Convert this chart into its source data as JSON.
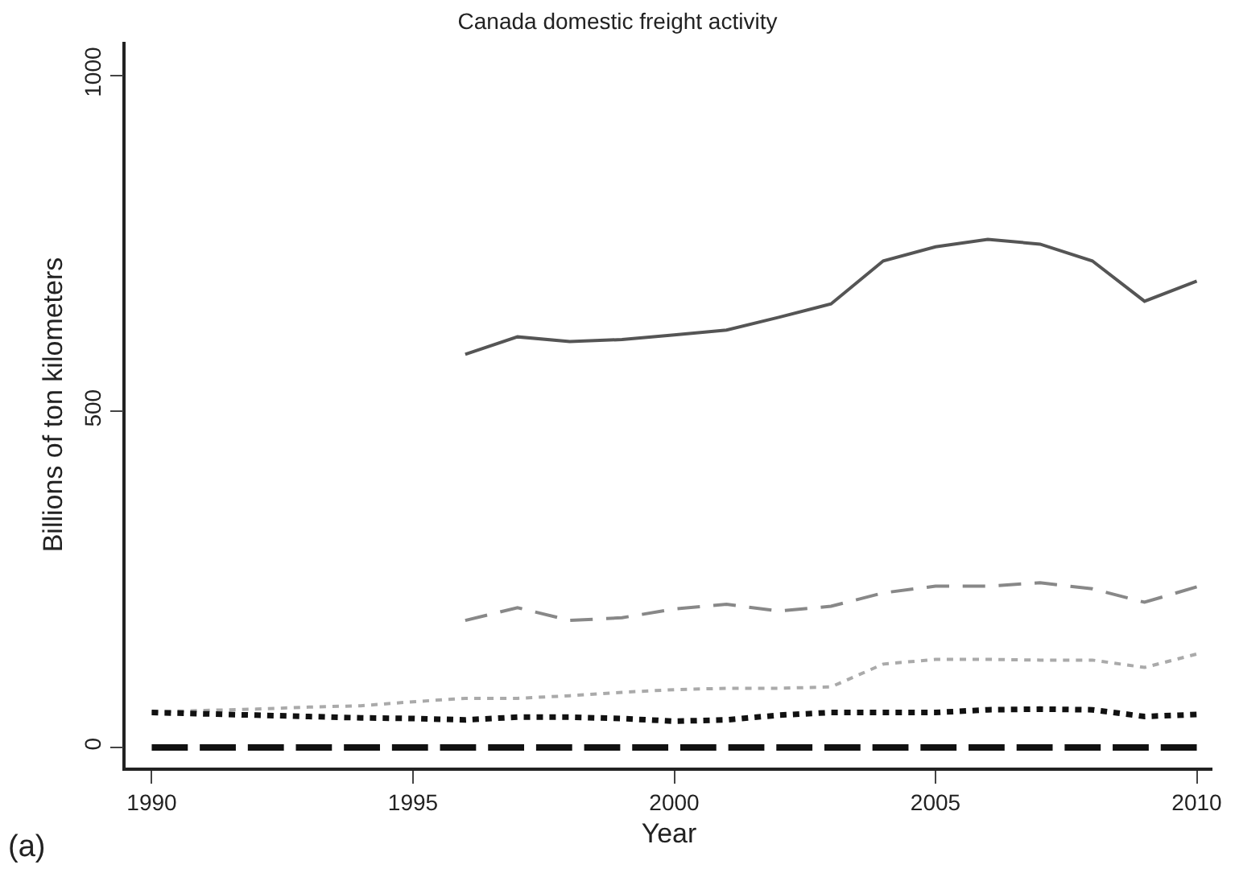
{
  "chart_data": {
    "type": "line",
    "title": "Canada domestic freight activity",
    "xlabel": "Year",
    "ylabel": "Billions of ton kilometers",
    "x": [
      1990,
      1991,
      1992,
      1993,
      1994,
      1995,
      1996,
      1997,
      1998,
      1999,
      2000,
      2001,
      2002,
      2003,
      2004,
      2005,
      2006,
      2007,
      2008,
      2009,
      2010
    ],
    "series": [
      {
        "color": "#555555",
        "line_style": "solid",
        "values": [
          null,
          null,
          null,
          null,
          null,
          null,
          585,
          611,
          604,
          607,
          614,
          621,
          640,
          660,
          724,
          745,
          756,
          749,
          724,
          664,
          694
        ]
      },
      {
        "color": "#888888",
        "line_style": "dashed",
        "values": [
          null,
          null,
          null,
          null,
          null,
          null,
          189,
          208,
          189,
          193,
          206,
          213,
          203,
          210,
          230,
          240,
          240,
          245,
          236,
          216,
          239
        ]
      },
      {
        "color": "#aaaaaa",
        "line_style": "dotted",
        "values": [
          53,
          55,
          57,
          60,
          62,
          68,
          73,
          73,
          77,
          82,
          86,
          88,
          88,
          90,
          124,
          131,
          131,
          130,
          130,
          119,
          139
        ]
      },
      {
        "color": "#111111",
        "line_style": "dotted",
        "values": [
          52,
          50,
          48,
          46,
          44,
          43,
          41,
          45,
          45,
          43,
          39,
          41,
          48,
          52,
          52,
          52,
          56,
          57,
          56,
          46,
          49
        ]
      },
      {
        "color": "#111111",
        "line_style": "dashed",
        "values": [
          0,
          0,
          0,
          0,
          0,
          0,
          0,
          0,
          0,
          0,
          0,
          0,
          0,
          0,
          0,
          0,
          0,
          0,
          0,
          0,
          0
        ]
      }
    ],
    "xlim": [
      1989.5,
      2010.3
    ],
    "xticks": [
      1990,
      1995,
      2000,
      2005,
      2010
    ],
    "ylim": [
      -30,
      1050
    ],
    "yticks": [
      0,
      500,
      1000
    ],
    "marker": "none",
    "annotations": [
      "(a)"
    ]
  }
}
